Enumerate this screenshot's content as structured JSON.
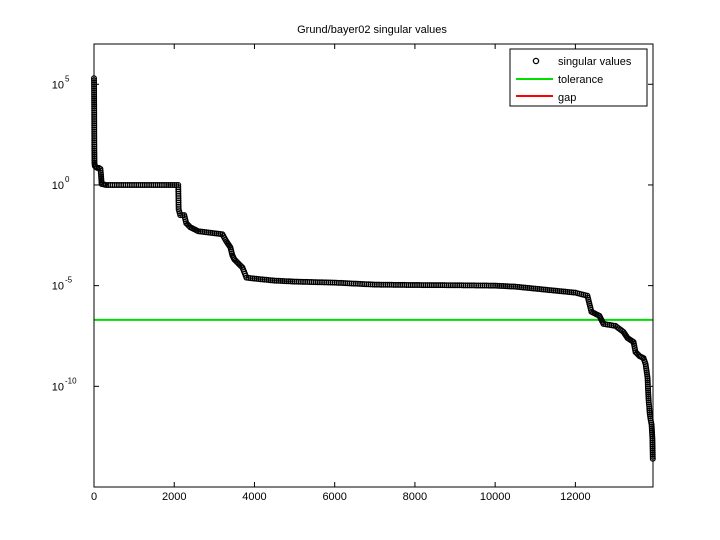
{
  "chart_data": {
    "type": "scatter",
    "title": "Grund/bayer02 singular values",
    "xlabel": "",
    "ylabel": "",
    "y_scale": "log",
    "xlim": [
      0,
      13935
    ],
    "ylim_exponent": [
      -15,
      7
    ],
    "x_ticks": [
      {
        "value": 0,
        "label": "0"
      },
      {
        "value": 2000,
        "label": "2000"
      },
      {
        "value": 4000,
        "label": "4000"
      },
      {
        "value": 6000,
        "label": "6000"
      },
      {
        "value": 8000,
        "label": "8000"
      },
      {
        "value": 10000,
        "label": "10000"
      },
      {
        "value": 12000,
        "label": "12000"
      }
    ],
    "y_ticks": [
      {
        "exponent": 5,
        "base": "10",
        "sup": "5"
      },
      {
        "exponent": 0,
        "base": "10",
        "sup": "0"
      },
      {
        "exponent": -5,
        "base": "10",
        "sup": "-5"
      },
      {
        "exponent": -10,
        "base": "10",
        "sup": "-10"
      }
    ],
    "legend": {
      "placement": "top-right",
      "items": [
        {
          "label": "singular values",
          "kind": "marker",
          "color": "#000000"
        },
        {
          "label": "tolerance",
          "kind": "line",
          "color": "#00dd00"
        },
        {
          "label": "gap",
          "kind": "line",
          "color": "#ff0000"
        }
      ]
    },
    "tolerance_log10": -6.7,
    "singular_values_log10": [
      [
        0,
        5.3
      ],
      [
        2,
        4.8
      ],
      [
        5,
        3.7
      ],
      [
        8,
        1.8
      ],
      [
        12,
        1.1
      ],
      [
        20,
        0.95
      ],
      [
        40,
        0.9
      ],
      [
        80,
        0.85
      ],
      [
        120,
        0.85
      ],
      [
        160,
        0.8
      ],
      [
        175,
        0.5
      ],
      [
        190,
        0.05
      ],
      [
        300,
        0.0
      ],
      [
        1000,
        0.0
      ],
      [
        1800,
        0.0
      ],
      [
        2100,
        0.0
      ],
      [
        2110,
        -1.2
      ],
      [
        2150,
        -1.5
      ],
      [
        2250,
        -1.5
      ],
      [
        2300,
        -1.9
      ],
      [
        2400,
        -2.1
      ],
      [
        2600,
        -2.3
      ],
      [
        2800,
        -2.35
      ],
      [
        3000,
        -2.4
      ],
      [
        3200,
        -2.45
      ],
      [
        3300,
        -2.8
      ],
      [
        3400,
        -3.1
      ],
      [
        3450,
        -3.5
      ],
      [
        3500,
        -3.7
      ],
      [
        3600,
        -3.9
      ],
      [
        3700,
        -4.1
      ],
      [
        3800,
        -4.6
      ],
      [
        4000,
        -4.65
      ],
      [
        4500,
        -4.75
      ],
      [
        5000,
        -4.8
      ],
      [
        6000,
        -4.85
      ],
      [
        7000,
        -4.95
      ],
      [
        8000,
        -4.97
      ],
      [
        9000,
        -4.98
      ],
      [
        10000,
        -5.0
      ],
      [
        10500,
        -5.05
      ],
      [
        11000,
        -5.15
      ],
      [
        11500,
        -5.25
      ],
      [
        12000,
        -5.35
      ],
      [
        12300,
        -5.5
      ],
      [
        12400,
        -6.3
      ],
      [
        12600,
        -6.5
      ],
      [
        12700,
        -6.9
      ],
      [
        13000,
        -7.0
      ],
      [
        13200,
        -7.3
      ],
      [
        13300,
        -7.6
      ],
      [
        13450,
        -7.8
      ],
      [
        13500,
        -8.3
      ],
      [
        13600,
        -8.5
      ],
      [
        13700,
        -8.6
      ],
      [
        13750,
        -8.9
      ],
      [
        13780,
        -9.3
      ],
      [
        13800,
        -9.6
      ],
      [
        13810,
        -10.1
      ],
      [
        13820,
        -10.5
      ],
      [
        13830,
        -10.8
      ],
      [
        13840,
        -11.0
      ],
      [
        13850,
        -11.3
      ],
      [
        13870,
        -11.6
      ],
      [
        13900,
        -11.9
      ],
      [
        13920,
        -12.6
      ],
      [
        13930,
        -13.6
      ]
    ]
  }
}
